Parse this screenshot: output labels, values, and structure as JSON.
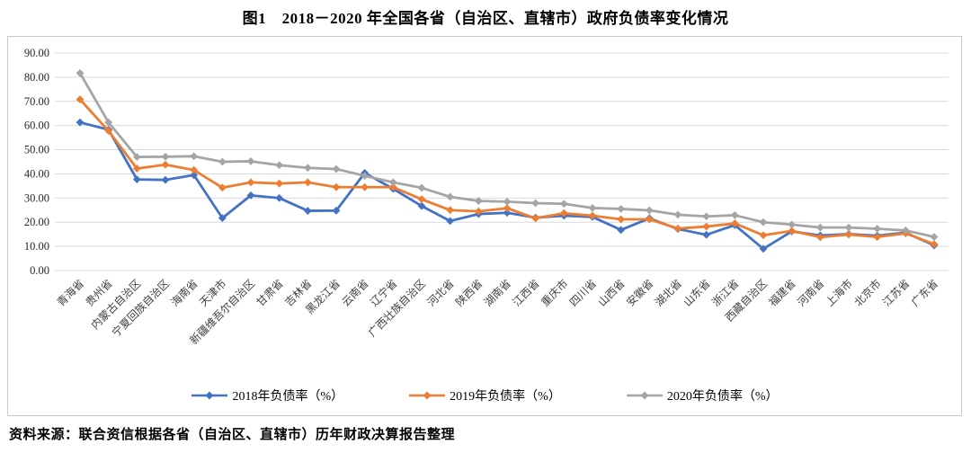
{
  "title": "图1　2018－2020 年全国各省（自治区、直辖市）政府负债率变化情况",
  "source_note": "资料来源：联合资信根据各省（自治区、直辖市）历年财政决算报告整理",
  "chart_data": {
    "type": "line",
    "title": "图1　2018－2020 年全国各省（自治区、直辖市）政府负债率变化情况",
    "xlabel": "",
    "ylabel": "",
    "ylim": [
      0,
      90
    ],
    "y_tick_labels": [
      "90.00",
      "80.00",
      "70.00",
      "60.00",
      "50.00",
      "40.00",
      "30.00",
      "20.00",
      "10.00",
      "0.00"
    ],
    "grid": true,
    "legend_position": "bottom",
    "marker": "diamond",
    "categories": [
      "青海省",
      "贵州省",
      "内蒙古自治区",
      "宁夏回族自治区",
      "海南省",
      "天津市",
      "新疆维吾尔自治区",
      "甘肃省",
      "吉林省",
      "黑龙江省",
      "云南省",
      "辽宁省",
      "广西壮族自治区",
      "河北省",
      "陕西省",
      "湖南省",
      "江西省",
      "重庆市",
      "四川省",
      "山西省",
      "安徽省",
      "湖北省",
      "山东省",
      "浙江省",
      "西藏自治区",
      "福建省",
      "河南省",
      "上海市",
      "北京市",
      "江苏省",
      "广东省"
    ],
    "series": [
      {
        "name": "2018年负债率（%）",
        "color": "#4472C4",
        "values": [
          61.3,
          58.3,
          37.7,
          37.5,
          39.5,
          21.7,
          31.1,
          30.0,
          24.7,
          24.8,
          40.4,
          33.8,
          26.7,
          20.5,
          23.4,
          23.9,
          21.9,
          22.7,
          22.2,
          16.8,
          21.6,
          17.2,
          14.8,
          18.8,
          9.0,
          16.2,
          14.5,
          15.1,
          14.4,
          15.7,
          10.4
        ]
      },
      {
        "name": "2019年负债率（%）",
        "color": "#ED7D31",
        "values": [
          70.8,
          57.8,
          42.2,
          43.8,
          41.6,
          34.3,
          36.5,
          36.0,
          36.5,
          34.5,
          34.5,
          34.5,
          29.5,
          25.0,
          24.5,
          25.8,
          21.6,
          23.7,
          22.7,
          21.2,
          21.2,
          17.4,
          18.2,
          19.5,
          14.6,
          16.4,
          13.8,
          14.9,
          13.9,
          15.4,
          10.9
        ]
      },
      {
        "name": "2020年负债率（%）",
        "color": "#A5A5A5",
        "values": [
          81.7,
          61.3,
          47.0,
          47.1,
          47.3,
          45.0,
          45.2,
          43.6,
          42.5,
          42.0,
          39.2,
          36.5,
          34.2,
          30.5,
          28.8,
          28.5,
          27.9,
          27.6,
          25.9,
          25.5,
          24.9,
          23.1,
          22.4,
          22.9,
          20.0,
          19.0,
          17.8,
          17.8,
          17.3,
          16.6,
          13.9
        ]
      }
    ],
    "colors": {
      "grid_line": "#d9d9d9",
      "axis_text": "#404040",
      "chart_border": "#c9c9c9"
    }
  }
}
